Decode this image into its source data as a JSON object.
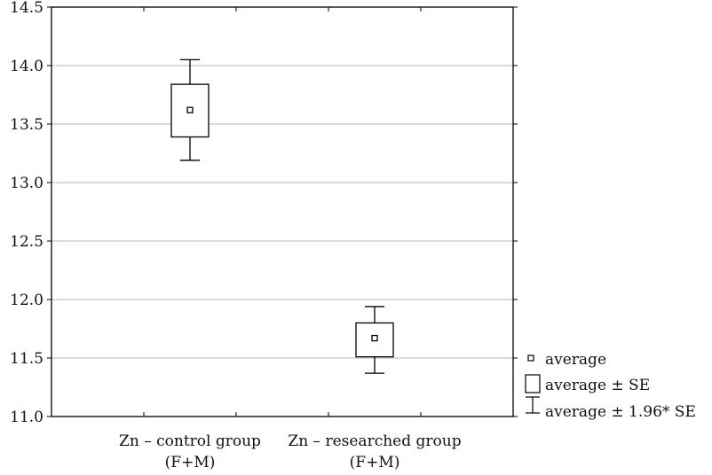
{
  "chart_data": {
    "type": "box",
    "title": "",
    "xlabel": "",
    "ylabel": "",
    "ylim": [
      11.0,
      14.5
    ],
    "yticks": [
      "11.0",
      "11.5",
      "12.0",
      "12.5",
      "13.0",
      "13.5",
      "14.0",
      "14.5"
    ],
    "grid": true,
    "categories": [
      {
        "line1": "Zn – control group",
        "line2": "(F+M)"
      },
      {
        "line1": "Zn – researched group",
        "line2": "(F+M)"
      }
    ],
    "series": [
      {
        "mean": 13.62,
        "se_low": 13.39,
        "se_high": 13.84,
        "ci_low": 13.19,
        "ci_high": 14.05
      },
      {
        "mean": 11.67,
        "se_low": 11.51,
        "se_high": 11.8,
        "ci_low": 11.37,
        "ci_high": 11.94
      }
    ],
    "legend": {
      "placement": "bottom-right",
      "items": [
        {
          "symbol": "mean-square",
          "label": "average"
        },
        {
          "symbol": "box",
          "label": "average ± SE"
        },
        {
          "symbol": "whisker",
          "label": "average ± 1.96* SE"
        }
      ]
    }
  }
}
